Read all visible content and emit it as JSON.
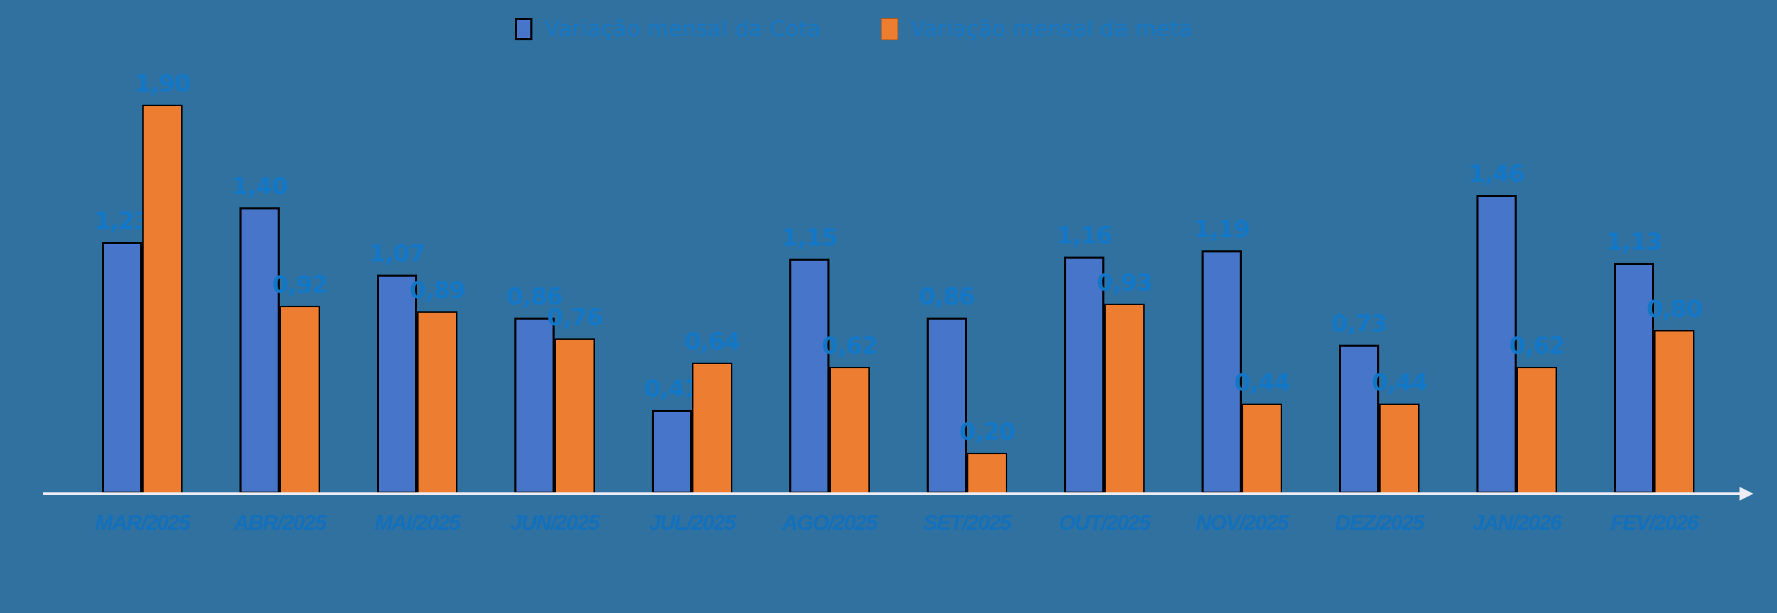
{
  "chart_data": {
    "type": "bar",
    "title": "",
    "categories": [
      "MAR/2025",
      "ABR/2025",
      "MAI/2025",
      "JUN/2025",
      "JUL/2025",
      "AGO/2025",
      "SET/2025",
      "OUT/2025",
      "NOV/2025",
      "DEZ/2025",
      "JAN/2026",
      "FEV/2026"
    ],
    "series": [
      {
        "name": "Variação mensal da Cota",
        "color": "#4775CA",
        "values": [
          1.23,
          1.4,
          1.07,
          0.86,
          0.41,
          1.15,
          0.86,
          1.16,
          1.19,
          0.73,
          1.46,
          1.13
        ],
        "value_labels": [
          "1,23",
          "1,40",
          "1,07",
          "0,86",
          "0,41",
          "1,15",
          "0,86",
          "1,16",
          "1,19",
          "0,73",
          "1,46",
          "1,13"
        ]
      },
      {
        "name": "Variação mensal da meta",
        "color": "#ED7D31",
        "values": [
          1.9,
          0.92,
          0.89,
          0.76,
          0.64,
          0.62,
          0.2,
          0.93,
          0.44,
          0.44,
          0.62,
          0.8
        ],
        "value_labels": [
          "1,90",
          "0,92",
          "0,89",
          "0,76",
          "0,64",
          "0,62",
          "0,20",
          "0,93",
          "0,44",
          "0,44",
          "0,62",
          "0,80"
        ]
      }
    ],
    "ylim": [
      0,
      2.0
    ],
    "grid": false,
    "legend_position": "top",
    "background_color": "#30719F",
    "value_label_color": "#1377C8",
    "category_label_color": "#1370BC",
    "axis_line_color": "#EDEDF5",
    "bar_border_color": "#000000"
  }
}
